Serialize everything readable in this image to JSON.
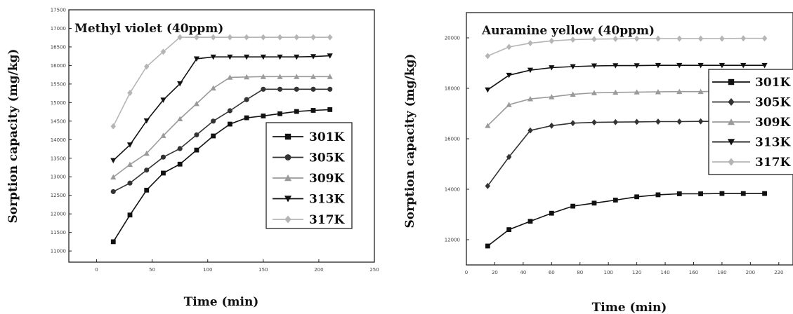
{
  "chart_data": [
    {
      "type": "line",
      "title": "Methyl violet (40ppm)",
      "xlabel": "Time (min)",
      "ylabel": "Sorption capacity (mg/kg)",
      "xlim": [
        -25,
        250
      ],
      "ylim": [
        10700,
        17500
      ],
      "x_ticks": [
        0,
        50,
        100,
        150,
        200,
        250
      ],
      "x_tick_labels": [
        "0",
        "50",
        "100",
        "150",
        "200",
        "250"
      ],
      "y_ticks": [
        11000,
        11500,
        12000,
        12500,
        13000,
        13500,
        14000,
        14500,
        15000,
        15500,
        16000,
        16500,
        17000,
        17500
      ],
      "y_tick_labels": [
        "11000",
        "11500",
        "12000",
        "12500",
        "13000",
        "13500",
        "14000",
        "14500",
        "15000",
        "15500",
        "16000",
        "16500",
        "17000",
        "17500"
      ],
      "legend_position": "center-right",
      "x": [
        15,
        30,
        45,
        60,
        75,
        90,
        105,
        120,
        135,
        150,
        165,
        180,
        195,
        210
      ],
      "series": [
        {
          "name": "301K",
          "marker": "square",
          "color": "#111111",
          "values": [
            11250,
            11970,
            12640,
            13100,
            13340,
            13720,
            14100,
            14420,
            14590,
            14640,
            14700,
            14760,
            14790,
            14810
          ]
        },
        {
          "name": "305K",
          "marker": "circle",
          "color": "#333333",
          "values": [
            12600,
            12830,
            13180,
            13530,
            13760,
            14130,
            14500,
            14780,
            15080,
            15360,
            15360,
            15360,
            15360,
            15360
          ]
        },
        {
          "name": "309K",
          "marker": "triangle-up",
          "color": "#9a9a9a",
          "values": [
            12990,
            13330,
            13630,
            14110,
            14560,
            14970,
            15390,
            15680,
            15690,
            15700,
            15700,
            15700,
            15700,
            15700
          ]
        },
        {
          "name": "313K",
          "marker": "triangle-down",
          "color": "#111111",
          "values": [
            13440,
            13860,
            14510,
            15070,
            15510,
            16180,
            16230,
            16230,
            16230,
            16230,
            16230,
            16230,
            16240,
            16260
          ]
        },
        {
          "name": "317K",
          "marker": "diamond",
          "color": "#b5b5b5",
          "values": [
            14360,
            15260,
            15970,
            16370,
            16760,
            16760,
            16760,
            16760,
            16760,
            16760,
            16760,
            16760,
            16760,
            16760
          ]
        }
      ]
    },
    {
      "type": "line",
      "title": "Auramine yellow (40ppm)",
      "xlabel": "Time (min)",
      "ylabel": "Sorption capacity (mg/kg)",
      "xlim": [
        0,
        230
      ],
      "ylim": [
        11000,
        21000
      ],
      "x_ticks": [
        0,
        20,
        40,
        60,
        80,
        100,
        120,
        140,
        160,
        180,
        200,
        220
      ],
      "x_tick_labels": [
        "0",
        "20",
        "40",
        "60",
        "80",
        "100",
        "120",
        "140",
        "160",
        "180",
        "200",
        "220"
      ],
      "y_ticks": [
        12000,
        14000,
        16000,
        18000,
        20000
      ],
      "y_tick_labels": [
        "12000",
        "14000",
        "16000",
        "18000",
        "20000"
      ],
      "legend_position": "top-right",
      "x": [
        15,
        30,
        45,
        60,
        75,
        90,
        105,
        120,
        135,
        150,
        165,
        180,
        195,
        210
      ],
      "series": [
        {
          "name": "301K",
          "marker": "square",
          "color": "#111111",
          "values": [
            11750,
            12400,
            12730,
            13050,
            13330,
            13450,
            13570,
            13700,
            13780,
            13820,
            13820,
            13830,
            13830,
            13830
          ]
        },
        {
          "name": "305K",
          "marker": "diamond",
          "color": "#333333",
          "values": [
            14130,
            15280,
            16330,
            16520,
            16620,
            16650,
            16660,
            16670,
            16680,
            16680,
            16690,
            16690,
            16690,
            16700
          ]
        },
        {
          "name": "309K",
          "marker": "triangle-up",
          "color": "#9a9a9a",
          "values": [
            16520,
            17350,
            17580,
            17660,
            17760,
            17820,
            17840,
            17850,
            17860,
            17870,
            17870,
            17880,
            17880,
            17880
          ]
        },
        {
          "name": "313K",
          "marker": "triangle-down",
          "color": "#111111",
          "values": [
            17940,
            18520,
            18720,
            18820,
            18860,
            18890,
            18900,
            18900,
            18910,
            18910,
            18910,
            18910,
            18910,
            18910
          ]
        },
        {
          "name": "317K",
          "marker": "diamond",
          "color": "#b5b5b5",
          "values": [
            19280,
            19640,
            19790,
            19880,
            19930,
            19950,
            19960,
            19970,
            19970,
            19970,
            19970,
            19970,
            19980,
            19980
          ]
        }
      ]
    }
  ]
}
